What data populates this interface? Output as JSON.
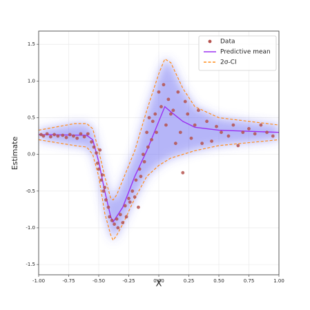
{
  "chart_data": {
    "type": "scatter",
    "x_label": "X",
    "y_label": "Estimate",
    "xlim": [
      -1,
      1
    ],
    "ylim": [
      -1.64,
      1.68
    ],
    "xticks": [
      {
        "value": -1,
        "label": "-1.00"
      },
      {
        "value": -0.75,
        "label": "-0.75"
      },
      {
        "value": -0.5,
        "label": "-0.50"
      },
      {
        "value": -0.25,
        "label": "-0.25"
      },
      {
        "value": 0,
        "label": "0.00"
      },
      {
        "value": 0.25,
        "label": "0.25"
      },
      {
        "value": 0.5,
        "label": "0.50"
      },
      {
        "value": 0.75,
        "label": "0.75"
      },
      {
        "value": 1,
        "label": "1.00"
      }
    ],
    "yticks": [
      -1.5,
      {
        "value": -1,
        "label": "-1.0"
      },
      -0.5,
      {
        "value": 0,
        "label": "0.0"
      },
      0.5,
      {
        "value": 1,
        "label": "1.0"
      },
      1.5
    ],
    "grid": true,
    "legend": "upper right",
    "series": [
      {
        "name": "Data",
        "kind": "scatter",
        "color": "#b5524e",
        "x": [
          -0.98,
          -0.96,
          -0.93,
          -0.9,
          -0.87,
          -0.84,
          -0.8,
          -0.77,
          -0.74,
          -0.71,
          -0.68,
          -0.65,
          -0.62,
          -0.59,
          -0.56,
          -0.54,
          -0.52,
          -0.51,
          -0.5,
          -0.49,
          -0.48,
          -0.47,
          -0.46,
          -0.45,
          -0.44,
          -0.42,
          -0.41,
          -0.39,
          -0.37,
          -0.35,
          -0.34,
          -0.32,
          -0.3,
          -0.28,
          -0.27,
          -0.25,
          -0.24,
          -0.22,
          -0.2,
          -0.19,
          -0.17,
          -0.16,
          -0.15,
          -0.13,
          -0.12,
          -0.1,
          -0.09,
          -0.08,
          -0.06,
          -0.05,
          -0.03,
          -0.02,
          0.0,
          0.02,
          0.04,
          0.06,
          0.08,
          0.1,
          0.12,
          0.14,
          0.16,
          0.18,
          0.2,
          0.22,
          0.24,
          0.27,
          0.3,
          0.33,
          0.36,
          0.4,
          0.44,
          0.48,
          0.52,
          0.58,
          0.62,
          0.66,
          0.7,
          0.75,
          0.8,
          0.85,
          0.9,
          0.95
        ],
        "values": [
          0.27,
          0.25,
          0.28,
          0.24,
          0.27,
          0.25,
          0.26,
          0.23,
          0.27,
          0.25,
          0.22,
          0.28,
          0.24,
          0.28,
          0.17,
          0.1,
          0.02,
          -0.12,
          -0.2,
          0.06,
          -0.35,
          -0.28,
          -0.5,
          -0.45,
          -0.62,
          -0.72,
          -0.85,
          -0.9,
          -0.95,
          -0.88,
          -1.0,
          -0.82,
          -0.93,
          -0.7,
          -0.85,
          -0.6,
          -0.65,
          -0.5,
          -0.58,
          -0.35,
          -0.72,
          -0.2,
          -0.3,
          0.0,
          -0.1,
          0.3,
          0.1,
          0.5,
          0.2,
          0.45,
          0.55,
          0.3,
          0.85,
          0.65,
          0.95,
          0.4,
          0.75,
          0.55,
          0.6,
          0.15,
          0.85,
          0.3,
          -0.25,
          0.72,
          0.55,
          0.22,
          0.4,
          0.6,
          0.15,
          0.45,
          0.18,
          0.38,
          0.3,
          0.25,
          0.4,
          0.12,
          0.3,
          0.35,
          0.28,
          0.4,
          0.3,
          0.25
        ]
      },
      {
        "name": "Predictive mean",
        "kind": "line",
        "color": "#9b30f0",
        "x": [
          -1,
          -0.6,
          -0.55,
          -0.5,
          -0.45,
          -0.4,
          -0.38,
          -0.3,
          -0.2,
          -0.1,
          0,
          0.05,
          0.1,
          0.2,
          0.3,
          0.5,
          1
        ],
        "values": [
          0.27,
          0.26,
          0.2,
          -0.1,
          -0.5,
          -0.85,
          -0.92,
          -0.72,
          -0.3,
          0.05,
          0.45,
          0.65,
          0.58,
          0.45,
          0.37,
          0.33,
          0.3
        ]
      },
      {
        "name": "2σ-CI",
        "kind": "band",
        "color": "#ff8c1a",
        "x": [
          -1,
          -0.7,
          -0.6,
          -0.55,
          -0.5,
          -0.45,
          -0.4,
          -0.38,
          -0.35,
          -0.3,
          -0.2,
          -0.1,
          0,
          0.05,
          0.1,
          0.2,
          0.3,
          0.5,
          1
        ],
        "values": [
          0.33,
          0.42,
          0.42,
          0.35,
          0.05,
          -0.3,
          -0.6,
          -0.62,
          -0.55,
          -0.35,
          0.05,
          0.6,
          1.1,
          1.3,
          1.25,
          0.9,
          0.65,
          0.5,
          0.4
        ],
        "lower": [
          0.2,
          0.12,
          0.1,
          0.0,
          -0.3,
          -0.8,
          -1.1,
          -1.17,
          -1.1,
          -0.95,
          -0.6,
          -0.3,
          -0.15,
          -0.1,
          -0.05,
          0.0,
          0.05,
          0.12,
          0.2
        ]
      }
    ]
  }
}
